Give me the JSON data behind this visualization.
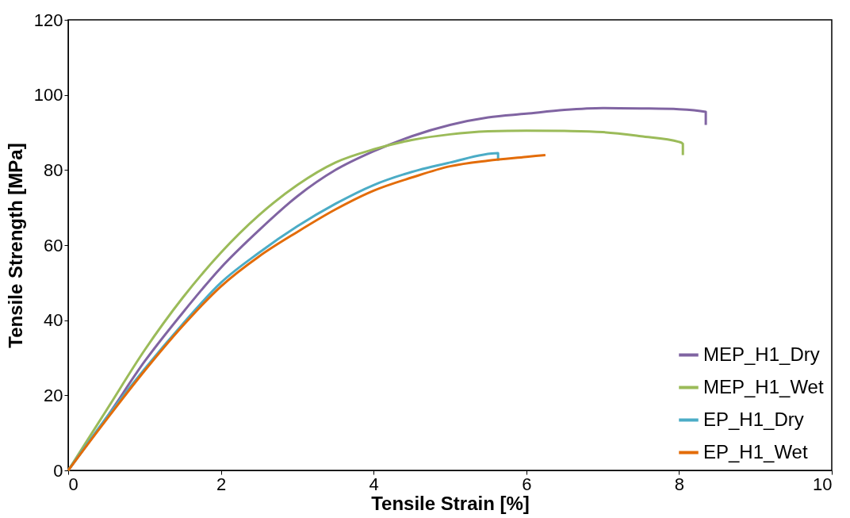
{
  "chart_data": {
    "type": "line",
    "xlabel": "Tensile Strain [%]",
    "ylabel": "Tensile Strength [MPa]",
    "xlim": [
      0,
      10
    ],
    "ylim": [
      0,
      120
    ],
    "xticks": [
      0,
      2,
      4,
      6,
      8,
      10
    ],
    "yticks": [
      0,
      20,
      40,
      60,
      80,
      100,
      120
    ],
    "grid": false,
    "legend": "bottom right",
    "marker": "none",
    "line_style": "solid",
    "series": [
      {
        "name": "MEP_H1_Dry",
        "color": "#8064a2",
        "x": [
          0,
          0.5,
          1,
          1.5,
          2,
          2.5,
          3,
          3.5,
          4,
          4.5,
          5,
          5.5,
          6,
          6.5,
          7,
          7.5,
          8,
          8.35,
          8.35
        ],
        "values": [
          0,
          14,
          29,
          42,
          54,
          64,
          73,
          80,
          85,
          89,
          92,
          94,
          95,
          96,
          96.5,
          96.4,
          96.2,
          95.5,
          92
        ]
      },
      {
        "name": "MEP_H1_Wet",
        "color": "#9bbb59",
        "x": [
          0,
          0.5,
          1,
          1.5,
          2,
          2.5,
          3,
          3.5,
          4,
          4.5,
          5,
          5.5,
          6,
          6.5,
          7,
          7.5,
          8,
          8.05,
          8.05
        ],
        "values": [
          0,
          16,
          32,
          46,
          58,
          68,
          76,
          82,
          85.5,
          88,
          89.5,
          90.3,
          90.5,
          90.4,
          90.1,
          89,
          87.5,
          87,
          84
        ]
      },
      {
        "name": "EP_H1_Dry",
        "color": "#4bacc6",
        "x": [
          0,
          0.5,
          1,
          1.5,
          2,
          2.5,
          3,
          3.5,
          4,
          4.5,
          5,
          5.63,
          5.63
        ],
        "values": [
          0,
          14,
          27,
          39,
          50,
          58,
          65,
          71,
          76,
          79.5,
          82,
          84.5,
          82.5
        ]
      },
      {
        "name": "EP_H1_Wet",
        "color": "#e36c09",
        "x": [
          0,
          0.5,
          1,
          1.5,
          2,
          2.5,
          3,
          3.5,
          4,
          4.5,
          5,
          5.5,
          6,
          6.25
        ],
        "values": [
          0,
          13.5,
          26.5,
          38.5,
          49,
          57,
          63.5,
          69.5,
          74.5,
          78,
          81,
          82.5,
          83.5,
          84
        ]
      }
    ]
  }
}
